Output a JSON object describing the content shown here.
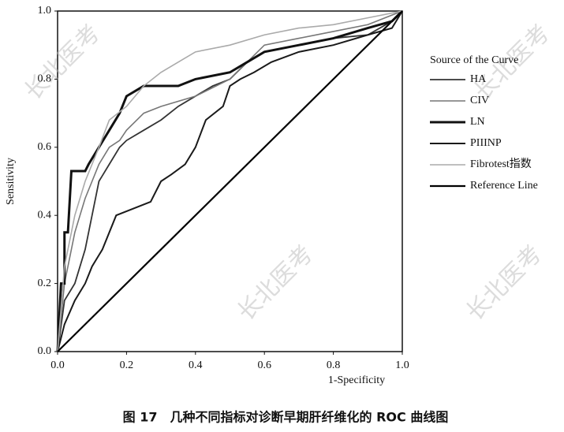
{
  "chart_data": {
    "type": "line",
    "caption": "图 17　几种不同指标对诊断早期肝纤维化的 ROC 曲线图",
    "x_label": "1-Specificity",
    "y_label": "Sensitivity",
    "legend_title": "Source of the Curve",
    "watermark": "长北医考",
    "xlim": [
      0,
      1
    ],
    "ylim": [
      0,
      1
    ],
    "xticks": [
      {
        "value": 0,
        "label": "0.0"
      },
      0.2,
      0.4,
      0.6,
      0.8,
      {
        "value": 1,
        "label": "1.0"
      }
    ],
    "yticks": [
      {
        "value": 0,
        "label": "0.0"
      },
      0.2,
      0.4,
      0.6,
      0.8,
      {
        "value": 1,
        "label": "1.0"
      }
    ],
    "series": [
      {
        "name": "HA",
        "color": "#333333",
        "x": [
          0,
          0.02,
          0.05,
          0.08,
          0.1,
          0.12,
          0.15,
          0.18,
          0.2,
          0.25,
          0.3,
          0.35,
          0.4,
          0.45,
          0.5,
          0.55,
          0.6,
          0.7,
          0.8,
          0.9,
          0.97,
          1
        ],
        "values": [
          0,
          0.15,
          0.2,
          0.3,
          0.4,
          0.5,
          0.55,
          0.6,
          0.62,
          0.65,
          0.68,
          0.72,
          0.75,
          0.78,
          0.8,
          0.85,
          0.88,
          0.9,
          0.92,
          0.93,
          0.97,
          1
        ]
      },
      {
        "name": "CIV",
        "color": "#777777",
        "x": [
          0,
          0.02,
          0.05,
          0.08,
          0.1,
          0.12,
          0.15,
          0.18,
          0.2,
          0.25,
          0.3,
          0.4,
          0.5,
          0.55,
          0.6,
          0.7,
          0.8,
          0.9,
          1
        ],
        "values": [
          0,
          0.2,
          0.35,
          0.45,
          0.5,
          0.55,
          0.6,
          0.62,
          0.65,
          0.7,
          0.72,
          0.75,
          0.8,
          0.85,
          0.9,
          0.92,
          0.94,
          0.96,
          1
        ]
      },
      {
        "name": "LN",
        "color": "#111111",
        "x": [
          0,
          0.01,
          0.02,
          0.02,
          0.03,
          0.04,
          0.08,
          0.09,
          0.12,
          0.15,
          0.18,
          0.2,
          0.25,
          0.35,
          0.4,
          0.5,
          0.55,
          0.6,
          0.7,
          0.8,
          0.9,
          0.97,
          1
        ],
        "values": [
          0,
          0.2,
          0.2,
          0.35,
          0.35,
          0.53,
          0.53,
          0.55,
          0.6,
          0.65,
          0.7,
          0.75,
          0.78,
          0.78,
          0.8,
          0.82,
          0.85,
          0.88,
          0.9,
          0.92,
          0.95,
          0.97,
          1
        ]
      },
      {
        "name": "PIIINP",
        "color": "#1a1a1a",
        "x": [
          0,
          0.02,
          0.05,
          0.08,
          0.1,
          0.13,
          0.17,
          0.22,
          0.27,
          0.3,
          0.33,
          0.37,
          0.4,
          0.43,
          0.48,
          0.5,
          0.53,
          0.57,
          0.62,
          0.7,
          0.8,
          0.9,
          0.97,
          1
        ],
        "values": [
          0,
          0.08,
          0.15,
          0.2,
          0.25,
          0.3,
          0.4,
          0.42,
          0.44,
          0.5,
          0.52,
          0.55,
          0.6,
          0.68,
          0.72,
          0.78,
          0.8,
          0.82,
          0.85,
          0.88,
          0.9,
          0.93,
          0.95,
          1
        ]
      },
      {
        "name": "Fibrotest指数",
        "color": "#aaaaaa",
        "x": [
          0,
          0.02,
          0.05,
          0.08,
          0.12,
          0.15,
          0.2,
          0.25,
          0.3,
          0.35,
          0.4,
          0.5,
          0.6,
          0.7,
          0.8,
          0.9,
          1
        ],
        "values": [
          0,
          0.25,
          0.4,
          0.5,
          0.6,
          0.68,
          0.72,
          0.78,
          0.82,
          0.85,
          0.88,
          0.9,
          0.93,
          0.95,
          0.96,
          0.98,
          1
        ]
      },
      {
        "name": "Reference Line",
        "color": "#000000",
        "x": [
          0,
          1
        ],
        "values": [
          0,
          1
        ]
      }
    ]
  }
}
